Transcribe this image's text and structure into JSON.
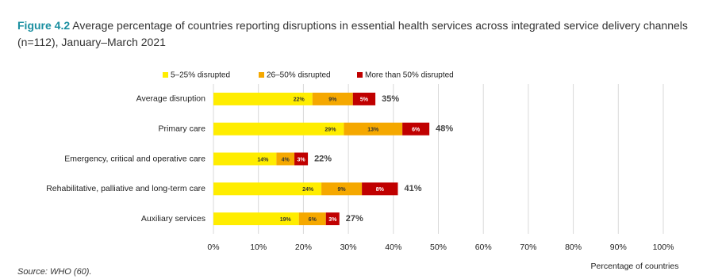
{
  "chart_data": {
    "type": "stacked-barh",
    "figure_label": "Figure 4.2",
    "title": "Average percentage of countries reporting disruptions in essential health services across integrated service delivery channels (n=112), January–March 2021",
    "source": "Source: WHO (60).",
    "xlabel": "Percentage of countries",
    "categories": [
      "Average disruption",
      "Primary care",
      "Emergency, critical and operative care",
      "Rehabilitative, palliative and long-term care",
      "Auxiliary services"
    ],
    "series": [
      {
        "name": "5–25% disrupted",
        "color": "#ffed00",
        "values": [
          22,
          29,
          14,
          24,
          19
        ],
        "value_labels": [
          "22%",
          "29%",
          "14%",
          "24%",
          "19%"
        ]
      },
      {
        "name": "26–50% disrupted",
        "color": "#f5a800",
        "values": [
          9,
          13,
          4,
          9,
          6
        ],
        "value_labels": [
          "9%",
          "13%",
          "4%",
          "9%",
          "6%"
        ]
      },
      {
        "name": "More than 50% disrupted",
        "color": "#c00000",
        "values": [
          5,
          6,
          3,
          8,
          3
        ],
        "value_labels": [
          "5%",
          "6%",
          "3%",
          "8%",
          "3%"
        ]
      }
    ],
    "totals": {
      "values": [
        35,
        48,
        22,
        41,
        27
      ],
      "value_labels": [
        "35%",
        "48%",
        "22%",
        "41%",
        "27%"
      ]
    },
    "xlim": [
      0,
      100
    ],
    "xticks": [
      {
        "value": 0,
        "label": "0%"
      },
      {
        "value": 10,
        "label": "10%"
      },
      {
        "value": 20,
        "label": "20%"
      },
      {
        "value": 30,
        "label": "30%"
      },
      {
        "value": 40,
        "label": "40%"
      },
      {
        "value": 50,
        "label": "50%"
      },
      {
        "value": 60,
        "label": "60%"
      },
      {
        "value": 70,
        "label": "70%"
      },
      {
        "value": 80,
        "label": "80%"
      },
      {
        "value": 90,
        "label": "90%"
      },
      {
        "value": 100,
        "label": "100%"
      }
    ],
    "grid": true,
    "legend": "top"
  }
}
